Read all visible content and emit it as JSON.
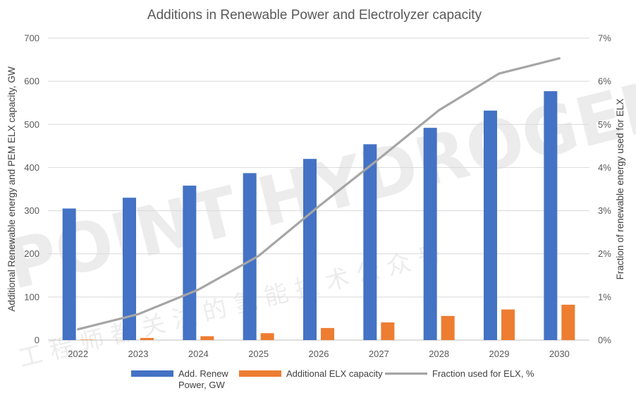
{
  "chart_data": {
    "type": "bar",
    "title": "Additions in Renewable Power and Electrolyzer capacity",
    "categories": [
      "2022",
      "2023",
      "2024",
      "2025",
      "2026",
      "2027",
      "2028",
      "2029",
      "2030"
    ],
    "series": [
      {
        "name": "Add. Renew Power, GW",
        "legend_lines": [
          "Add. Renew",
          "Power, GW"
        ],
        "type": "bar",
        "axis": "left",
        "color": "#4472C4",
        "values": [
          305,
          330,
          358,
          387,
          420,
          454,
          492,
          532,
          577
        ]
      },
      {
        "name": "Additional ELX capacity",
        "legend_lines": [
          "Additional ELX capacity"
        ],
        "type": "bar",
        "axis": "left",
        "color": "#ED7D31",
        "values": [
          1,
          5,
          9,
          16,
          28,
          41,
          56,
          71,
          82
        ]
      },
      {
        "name": "Fraction used for ELX, %",
        "legend_lines": [
          "Fraction used for ELX, %"
        ],
        "type": "line",
        "axis": "right",
        "color": "#A5A5A5",
        "values": [
          0.25,
          0.6,
          1.17,
          1.95,
          3.1,
          4.2,
          5.33,
          6.18,
          6.53
        ]
      }
    ],
    "y_left": {
      "label": "Additional Renewable energy and PEM ELX capacity, GW",
      "ylim": [
        0,
        700
      ],
      "ticks": [
        "0",
        "100",
        "200",
        "300",
        "400",
        "500",
        "600",
        "700"
      ]
    },
    "y_right": {
      "label": "Fraction of renewable energy used for ELX",
      "ylim": [
        0,
        7
      ],
      "ticks": [
        "0%",
        "1%",
        "2%",
        "3%",
        "4%",
        "5%",
        "6%",
        "7%"
      ]
    },
    "grid": true,
    "legend_position": "bottom"
  },
  "watermark": {
    "latin": "POINT HYDROGEN",
    "cjk": "工 程 师 都 关 注 的 氢 能 技 术 公 众 号"
  }
}
